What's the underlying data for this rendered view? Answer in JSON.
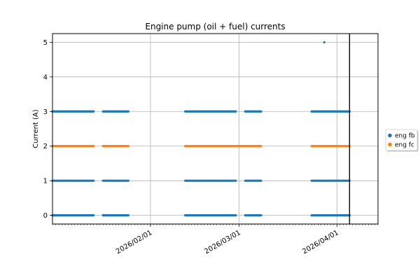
{
  "chart_data": {
    "type": "scatter",
    "title": "Engine pump (oil + fuel) currents",
    "xlabel": "",
    "ylabel": "Current (A)",
    "x_type": "date",
    "xlim": [
      "2026-01-01",
      "2026-04-14"
    ],
    "ylim": [
      -0.25,
      5.25
    ],
    "x_ticks": [
      "2026-02-01",
      "2026-03-01",
      "2026-04-01"
    ],
    "y_ticks": [
      0,
      1,
      2,
      3,
      4,
      5
    ],
    "grid": true,
    "legend_position": "right",
    "vline": "2026-04-05",
    "series": [
      {
        "name": "eng fb",
        "color": "#1f77b4",
        "segments": [
          {
            "start": "2026-01-01",
            "end": "2026-01-14",
            "values": [
              0,
              1,
              3
            ]
          },
          {
            "start": "2026-01-17",
            "end": "2026-01-25",
            "values": [
              0,
              1,
              3
            ]
          },
          {
            "start": "2026-02-12",
            "end": "2026-02-28",
            "values": [
              0,
              1,
              3
            ]
          },
          {
            "start": "2026-03-03",
            "end": "2026-03-08",
            "values": [
              0,
              1,
              3
            ]
          },
          {
            "start": "2026-03-24",
            "end": "2026-04-05",
            "values": [
              0,
              1,
              3
            ]
          }
        ],
        "points": [
          {
            "x": "2026-03-28",
            "y": 5
          }
        ]
      },
      {
        "name": "eng fc",
        "color": "#ff7f0e",
        "segments": [
          {
            "start": "2026-01-01",
            "end": "2026-01-14",
            "values": [
              2
            ]
          },
          {
            "start": "2026-01-17",
            "end": "2026-01-25",
            "values": [
              2
            ]
          },
          {
            "start": "2026-02-12",
            "end": "2026-03-08",
            "values": [
              2
            ]
          },
          {
            "start": "2026-03-24",
            "end": "2026-04-05",
            "values": [
              2
            ]
          }
        ],
        "points": []
      }
    ]
  }
}
